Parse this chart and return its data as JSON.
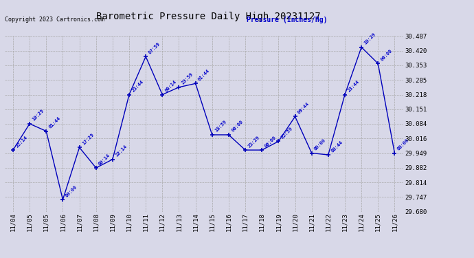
{
  "title": "Barometric Pressure Daily High 20231127",
  "ylabel": "Pressure (Inches/Hg)",
  "copyright": "Copyright 2023 Cartronics.com",
  "background_color": "#d8d8e8",
  "line_color": "#0000bb",
  "text_color": "#0000cc",
  "ylim_min": 29.68,
  "ylim_max": 30.487,
  "ytick_values": [
    29.68,
    29.747,
    29.814,
    29.882,
    29.949,
    30.016,
    30.084,
    30.151,
    30.218,
    30.285,
    30.353,
    30.42,
    30.487
  ],
  "pressures": [
    29.963,
    30.084,
    30.05,
    29.735,
    29.975,
    29.881,
    29.92,
    30.218,
    30.393,
    30.218,
    30.252,
    30.269,
    30.033,
    30.033,
    29.963,
    29.963,
    30.003,
    30.117,
    29.949,
    29.941,
    30.218,
    30.436,
    30.361,
    29.949
  ],
  "time_labels": [
    "22:14",
    "10:29",
    "01:44",
    "00:00",
    "17:29",
    "00:14",
    "22:14",
    "23:44",
    "07:59",
    "00:14",
    "23:59",
    "01:44",
    "18:59",
    "00:00",
    "23:29",
    "00:00",
    "22:59",
    "09:44",
    "00:00",
    "08:44",
    "23:44",
    "10:29",
    "00:00",
    "08:00"
  ],
  "xtick_labels": [
    "11/04",
    "11/05",
    "11/05",
    "11/06",
    "11/07",
    "11/08",
    "11/09",
    "11/10",
    "11/11",
    "11/12",
    "11/13",
    "11/14",
    "11/15",
    "11/16",
    "11/17",
    "11/18",
    "11/19",
    "11/20",
    "11/21",
    "11/22",
    "11/23",
    "11/24",
    "11/25",
    "11/26"
  ]
}
